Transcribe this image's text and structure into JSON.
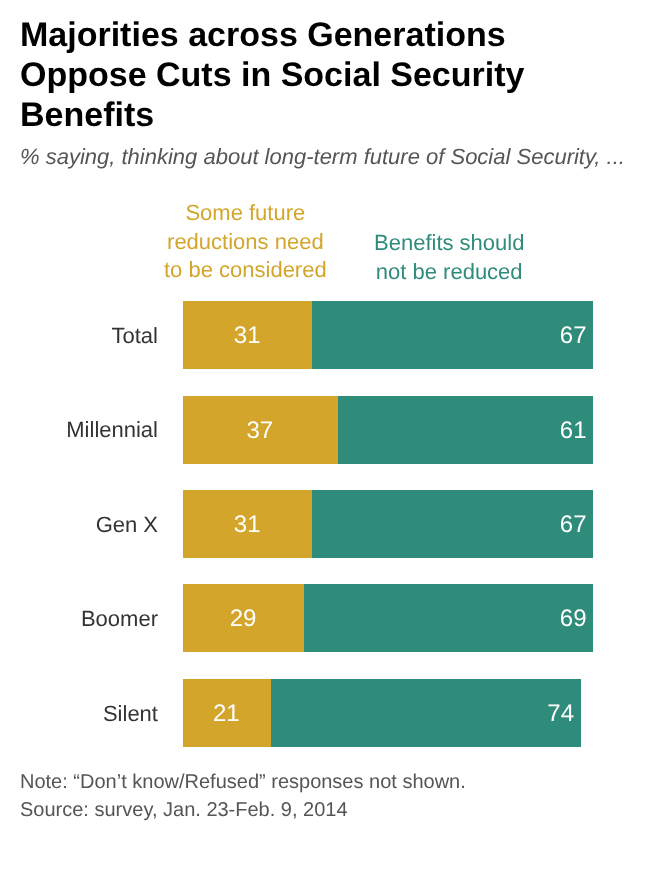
{
  "chart_data": {
    "type": "bar",
    "orientation": "horizontal",
    "stacked": true,
    "data_labels": true,
    "legend": false,
    "title": "Majorities across Generations Oppose Cuts in Social Security Benefits",
    "subtitle": "% saying, thinking about long-term future of Social Security, ...",
    "categories": [
      "Total",
      "Millennial",
      "Gen X",
      "Boomer",
      "Silent"
    ],
    "series": [
      {
        "name": "Some future reductions need to be considered",
        "color": "#d4a52b",
        "values": [
          31,
          37,
          31,
          29,
          21
        ]
      },
      {
        "name": "Benefits should not be reduced",
        "color": "#2f8c7b",
        "values": [
          67,
          61,
          67,
          69,
          74
        ]
      }
    ],
    "annotations": [
      "Note: “Don’t know/Refused” responses not shown.",
      "Source: survey, Jan. 23-Feb. 9, 2014"
    ]
  }
}
